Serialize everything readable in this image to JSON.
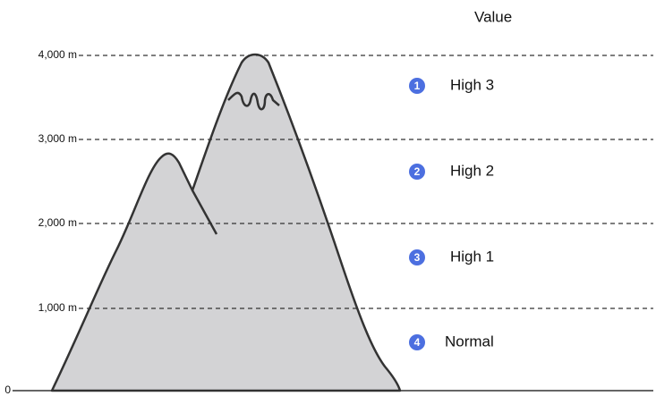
{
  "header": {
    "title": "Value"
  },
  "levels": [
    "4,000 m",
    "3,000 m",
    "2,000 m",
    "1,000 m",
    "0"
  ],
  "items": [
    {
      "number": "1",
      "label": "High 3"
    },
    {
      "number": "2",
      "label": "High 2"
    },
    {
      "number": "3",
      "label": "High 1"
    },
    {
      "number": "4",
      "label": "Normal"
    }
  ]
}
